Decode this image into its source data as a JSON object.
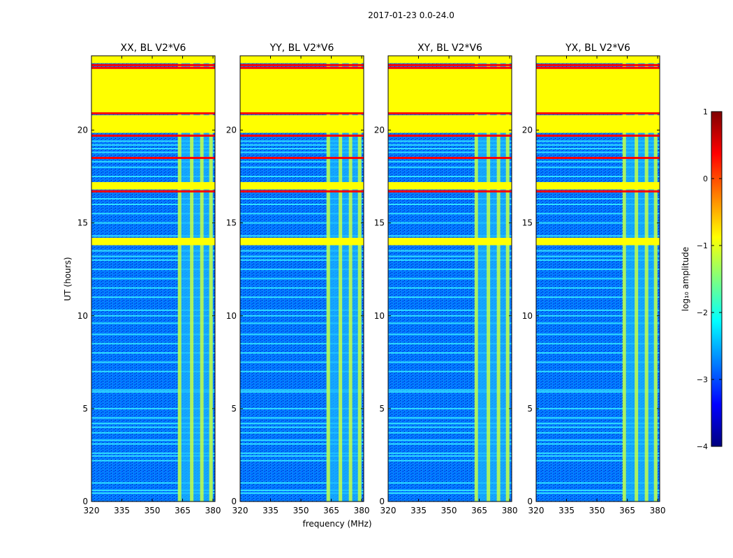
{
  "figure": {
    "suptitle": "2017-01-23 0.0-24.0",
    "ylabel": "UT (hours)",
    "xlabel": "frequency (MHz)"
  },
  "chart_data": {
    "type": "heatmap",
    "title": "2017-01-23 0.0-24.0",
    "xlim": [
      320,
      381
    ],
    "ylim": [
      0,
      24
    ],
    "x_ticks": [
      320,
      335,
      350,
      365,
      380
    ],
    "y_ticks": [
      0,
      5,
      10,
      15,
      20
    ],
    "panels": [
      {
        "title": "XX, BL V2*V6"
      },
      {
        "title": "YY, BL V2*V6"
      },
      {
        "title": "XY, BL V2*V6"
      },
      {
        "title": "YX, BL V2*V6"
      }
    ],
    "colorbar": {
      "label": "log₁₀ amplitude",
      "range": [
        -4,
        1
      ],
      "ticks": [
        {
          "value": 1,
          "label": "1"
        },
        {
          "value": 0,
          "label": "0"
        },
        {
          "value": -1,
          "label": "−1"
        },
        {
          "value": -2,
          "label": "−2"
        },
        {
          "value": -3,
          "label": "−3"
        },
        {
          "value": -4,
          "label": "−4"
        }
      ],
      "colormap": [
        "#00007f",
        "#0000ff",
        "#007fff",
        "#00ffff",
        "#7fff7f",
        "#ffff00",
        "#ff7f00",
        "#ff0000",
        "#7f0000"
      ]
    },
    "background_level": -2.9,
    "rfi_band_mhz": [
      363,
      380
    ],
    "rfi_channels_mhz": [
      363.5,
      369.5,
      374.5,
      379
    ],
    "flagged_blocks_hours": [
      {
        "start": 13.8,
        "end": 14.2,
        "level": -1
      },
      {
        "start": 16.8,
        "end": 17.2,
        "level": -1
      },
      {
        "start": 19.85,
        "end": 20.8,
        "level": -1
      },
      {
        "start": 20.95,
        "end": 23.3,
        "level": -1
      },
      {
        "start": 23.6,
        "end": 24.0,
        "level": -1
      }
    ],
    "hot_lines_hours": [
      {
        "h": 23.35,
        "level": 0.2
      },
      {
        "h": 23.5,
        "level": 0.2
      },
      {
        "h": 20.9,
        "level": 0.1
      },
      {
        "h": 19.7,
        "level": 0.3
      },
      {
        "h": 16.7,
        "level": 0.2
      },
      {
        "h": 18.5,
        "level": 0.3
      }
    ],
    "band_lines_hours": [
      0.45,
      0.6,
      1.0,
      2.2,
      2.45,
      2.6,
      3.1,
      3.3,
      3.7,
      4.0,
      4.2,
      4.5,
      5.0,
      5.9,
      6.0,
      7.0,
      7.5,
      8.0,
      8.5,
      9.0,
      9.6,
      10.0,
      10.3,
      11.0,
      11.5,
      12.0,
      12.5,
      13.0,
      13.2,
      13.5,
      14.0,
      14.3,
      15.0,
      15.5,
      16.0,
      16.3,
      17.5,
      18.0,
      18.3,
      18.8,
      19.0,
      19.2,
      19.4
    ]
  }
}
